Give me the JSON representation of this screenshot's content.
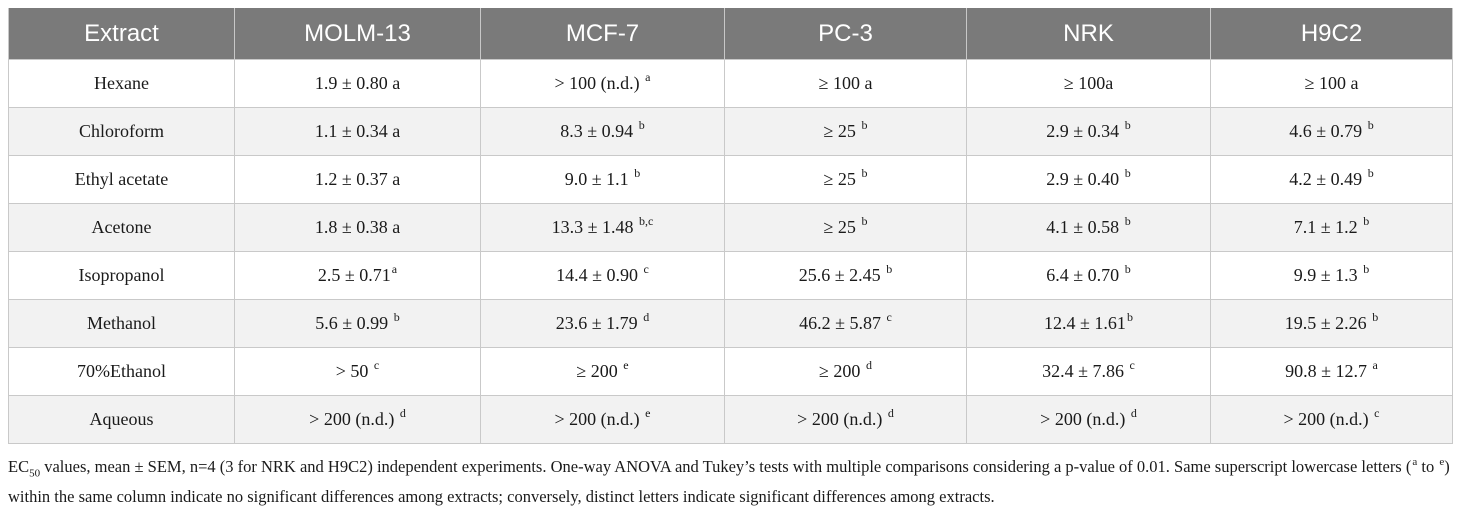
{
  "table": {
    "headers": [
      "Extract",
      "MOLM-13",
      "MCF-7",
      "PC-3",
      "NRK",
      "H9C2"
    ],
    "rows": [
      {
        "extract": "Hexane",
        "cells": [
          {
            "v": "1.9 ± 0.80 a",
            "s": ""
          },
          {
            "v": "> 100 (n.d.) ",
            "s": "a"
          },
          {
            "v": "≥ 100 a",
            "s": ""
          },
          {
            "v": "≥ 100a",
            "s": ""
          },
          {
            "v": "≥ 100 a",
            "s": ""
          }
        ]
      },
      {
        "extract": "Chloroform",
        "cells": [
          {
            "v": "1.1 ± 0.34 a",
            "s": ""
          },
          {
            "v": "8.3 ± 0.94 ",
            "s": "b"
          },
          {
            "v": "≥ 25 ",
            "s": "b"
          },
          {
            "v": "2.9 ± 0.34 ",
            "s": "b"
          },
          {
            "v": "4.6 ± 0.79 ",
            "s": "b"
          }
        ]
      },
      {
        "extract": "Ethyl acetate",
        "cells": [
          {
            "v": "1.2 ± 0.37 a",
            "s": ""
          },
          {
            "v": "9.0 ± 1.1 ",
            "s": "b"
          },
          {
            "v": "≥ 25 ",
            "s": "b"
          },
          {
            "v": "2.9 ± 0.40 ",
            "s": "b"
          },
          {
            "v": "4.2 ± 0.49 ",
            "s": "b"
          }
        ]
      },
      {
        "extract": "Acetone",
        "cells": [
          {
            "v": "1.8 ± 0.38 a",
            "s": ""
          },
          {
            "v": "13.3 ± 1.48 ",
            "s": "b,c"
          },
          {
            "v": "≥ 25 ",
            "s": "b"
          },
          {
            "v": "4.1 ± 0.58 ",
            "s": "b"
          },
          {
            "v": "7.1 ± 1.2 ",
            "s": "b"
          }
        ]
      },
      {
        "extract": "Isopropanol",
        "cells": [
          {
            "v": "2.5 ± 0.71",
            "s": "a"
          },
          {
            "v": "14.4 ± 0.90 ",
            "s": "c"
          },
          {
            "v": "25.6 ± 2.45 ",
            "s": "b"
          },
          {
            "v": "6.4 ± 0.70 ",
            "s": "b"
          },
          {
            "v": "9.9 ± 1.3 ",
            "s": "b"
          }
        ]
      },
      {
        "extract": "Methanol",
        "cells": [
          {
            "v": "5.6 ± 0.99 ",
            "s": "b"
          },
          {
            "v": "23.6 ± 1.79 ",
            "s": "d"
          },
          {
            "v": "46.2 ± 5.87 ",
            "s": "c"
          },
          {
            "v": "12.4 ± 1.61",
            "s": "b"
          },
          {
            "v": "19.5 ± 2.26 ",
            "s": "b"
          }
        ]
      },
      {
        "extract": "70%Ethanol",
        "cells": [
          {
            "v": "> 50 ",
            "s": "c"
          },
          {
            "v": "≥ 200 ",
            "s": "e"
          },
          {
            "v": "≥ 200 ",
            "s": "d"
          },
          {
            "v": "32.4 ± 7.86 ",
            "s": "c"
          },
          {
            "v": "90.8 ± 12.7 ",
            "s": "a"
          }
        ]
      },
      {
        "extract": "Aqueous",
        "cells": [
          {
            "v": "> 200 (n.d.) ",
            "s": "d"
          },
          {
            "v": "> 200 (n.d.) ",
            "s": "e"
          },
          {
            "v": "> 200 (n.d.) ",
            "s": "d"
          },
          {
            "v": "> 200 (n.d.) ",
            "s": "d"
          },
          {
            "v": "> 200 (n.d.) ",
            "s": "c"
          }
        ]
      }
    ]
  },
  "note": {
    "ec": "EC",
    "ec_sub": "50",
    "part1": " values, mean ± SEM, n=4 (3 for NRK and H9C2) independent experiments. One-way ANOVA and Tukey’s tests with multiple comparisons considering a p-value of 0.01. Same superscript lowercase letters (",
    "sup_a": "a",
    "mid": " to ",
    "sup_e": "e",
    "part2": ") within the same column indicate no significant differences among extracts; conversely, distinct letters indicate significant differences among extracts."
  },
  "colors": {
    "header_bg": "#7a7a7a",
    "stripe": "#f2f2f2",
    "border": "#c9c9c9"
  }
}
